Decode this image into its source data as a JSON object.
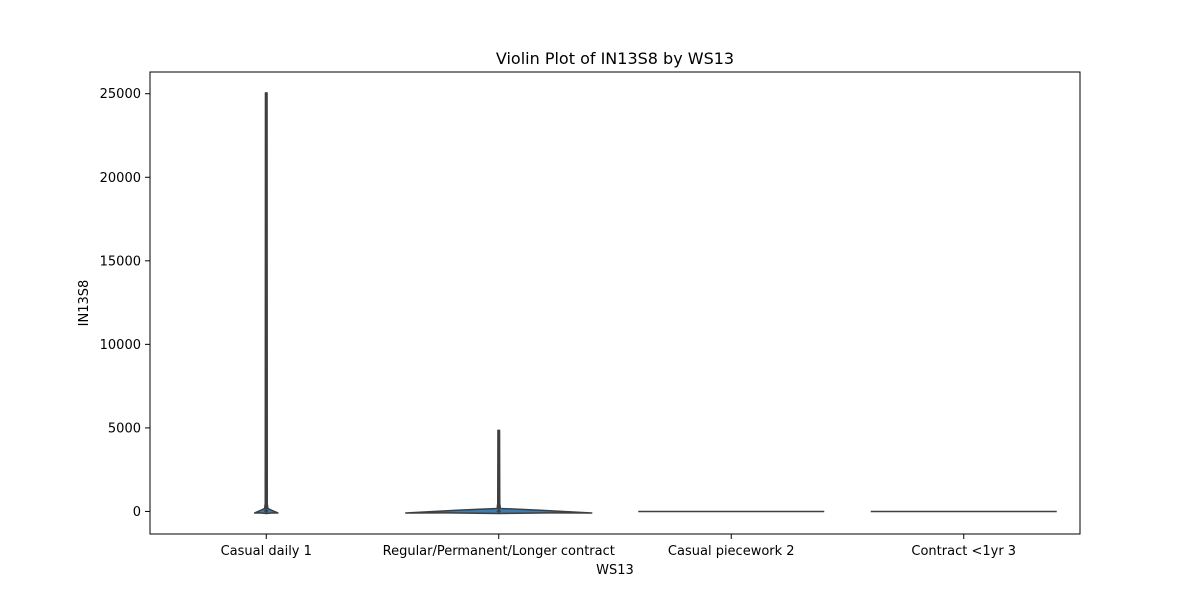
{
  "chart_data": {
    "type": "violin",
    "title": "Violin Plot of IN13S8 by WS13",
    "xlabel": "WS13",
    "ylabel": "IN13S8",
    "ylim": [
      -1350,
      26300
    ],
    "yticks": [
      0,
      5000,
      10000,
      15000,
      20000,
      25000
    ],
    "categories": [
      "Casual daily 1",
      "Regular/Permanent/Longer contract",
      "Casual piecework 2",
      "Contract <1yr 3"
    ],
    "violins": [
      {
        "category": "Casual daily 1",
        "min": -120,
        "max": 25050,
        "max_width": 0.1,
        "peak": 0,
        "inner_q1": -20,
        "inner_q3": 80
      },
      {
        "category": "Regular/Permanent/Longer contract",
        "min": -120,
        "max": 4850,
        "max_width": 0.8,
        "peak": 0,
        "inner_q1": -30,
        "inner_q3": 60
      },
      {
        "category": "Casual piecework 2",
        "min": 0,
        "max": 0,
        "max_width": 0.8,
        "peak": 0
      },
      {
        "category": "Contract <1yr 3",
        "min": 0,
        "max": 0,
        "max_width": 0.8,
        "peak": 0
      }
    ],
    "colors": {
      "body": "#3b7fb5",
      "edge": "#3f3f3f"
    },
    "grid": false,
    "legend": false
  }
}
